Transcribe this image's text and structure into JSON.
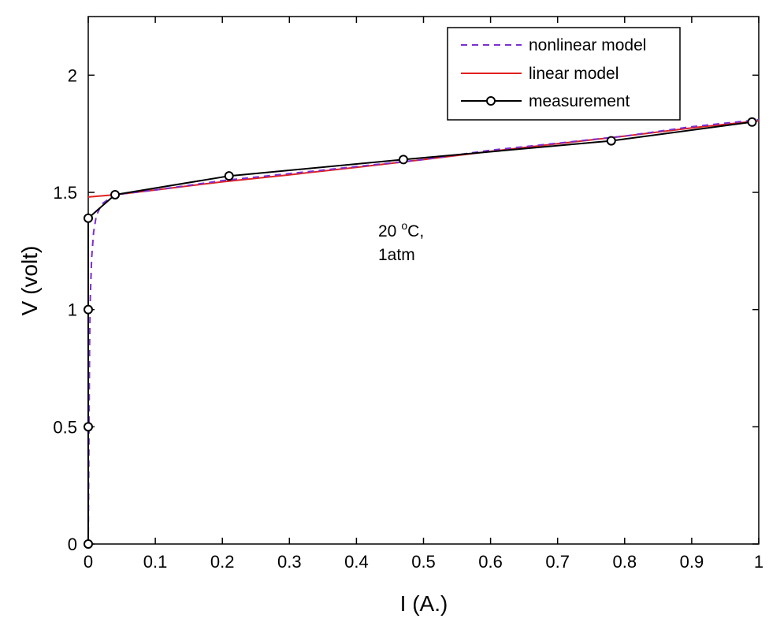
{
  "chart_data": {
    "type": "line",
    "xlabel": "I (A.)",
    "ylabel": "V (volt)",
    "xlim": [
      0,
      1
    ],
    "ylim": [
      0,
      2.25
    ],
    "xticks": [
      0,
      0.1,
      0.2,
      0.3,
      0.4,
      0.5,
      0.6,
      0.7,
      0.8,
      0.9,
      1
    ],
    "xtick_labels": [
      "0",
      "0.1",
      "0.2",
      "0.3",
      "0.4",
      "0.5",
      "0.6",
      "0.7",
      "0.8",
      "0.9",
      "1"
    ],
    "yticks": [
      0,
      0.5,
      1,
      1.5,
      2
    ],
    "ytick_labels": [
      "0",
      "0.5",
      "1",
      "1.5",
      "2"
    ],
    "grid": false,
    "legend_position": "top-right",
    "annotation": {
      "line1_value": "20",
      "line1_sup": "o",
      "line1_unit": "C,",
      "line2": "1atm"
    },
    "series": [
      {
        "name": "nonlinear model",
        "color": "#7b2fd0",
        "style": "dashed",
        "x": [
          0,
          0.001,
          0.002,
          0.003,
          0.005,
          0.008,
          0.012,
          0.02,
          0.04,
          0.1,
          0.2,
          0.3,
          0.4,
          0.5,
          0.6,
          0.7,
          0.8,
          0.9,
          1.0
        ],
        "y": [
          0,
          0.45,
          0.85,
          1.05,
          1.22,
          1.33,
          1.4,
          1.45,
          1.49,
          1.51,
          1.55,
          1.58,
          1.61,
          1.64,
          1.68,
          1.71,
          1.74,
          1.78,
          1.81
        ]
      },
      {
        "name": "linear model",
        "color": "#e0201e",
        "style": "solid",
        "x": [
          0,
          0.04,
          0.1,
          0.2,
          0.3,
          0.4,
          0.5,
          0.6,
          0.7,
          0.8,
          0.9,
          1.0
        ],
        "y": [
          1.48,
          1.49,
          1.51,
          1.545,
          1.575,
          1.607,
          1.64,
          1.675,
          1.708,
          1.74,
          1.775,
          1.805
        ]
      },
      {
        "name": "measurement",
        "color": "#000000",
        "style": "solid-marker",
        "marker": "circle",
        "x": [
          0,
          0,
          0,
          0,
          0.04,
          0.21,
          0.47,
          0.78,
          0.99
        ],
        "y": [
          0,
          0.5,
          1.0,
          1.39,
          1.49,
          1.57,
          1.64,
          1.72,
          1.8
        ]
      }
    ]
  }
}
